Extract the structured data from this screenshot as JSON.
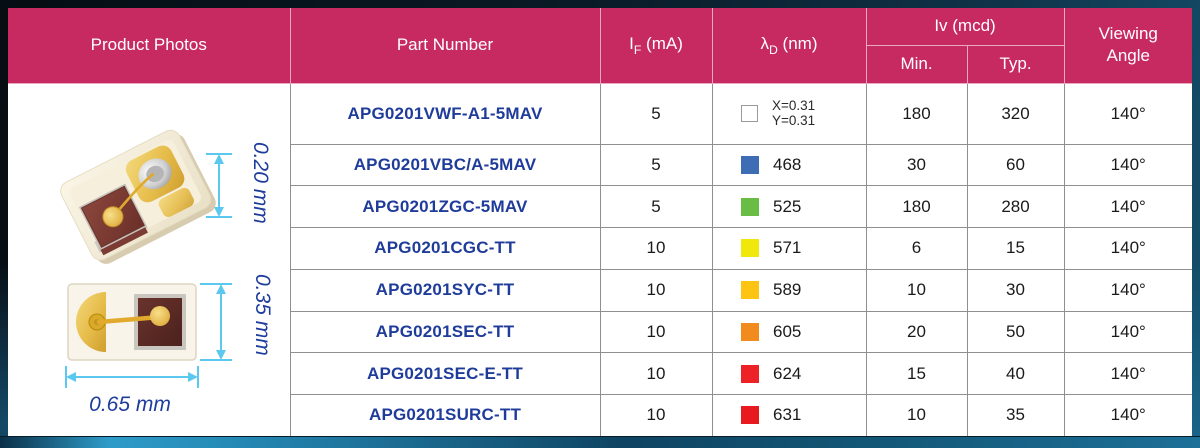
{
  "colors": {
    "header_bg": "#c72a60",
    "part_number_text": "#1f3c9b",
    "dimension_text": "#1e3d9c",
    "dimension_arrow": "#5bc8f0",
    "body_border": "#8f8f8f"
  },
  "header": {
    "product_photos": "Product Photos",
    "part_number": "Part Number",
    "if_i": "I",
    "if_sub": "F",
    "if_unit": " (mA)",
    "lambda": "λ",
    "lambda_sub": "D",
    "lambda_unit": " (nm)",
    "iv": "Iv (mcd)",
    "min": "Min.",
    "typ": "Typ.",
    "viewing1": "Viewing",
    "viewing2": "Angle"
  },
  "photos": {
    "dim_height_side": "0.20 mm",
    "dim_height_top": "0.35 mm",
    "dim_width_top": "0.65 mm"
  },
  "rows": [
    {
      "part": "APG0201VWF-A1-5MAV",
      "if": "5",
      "swatch": "#ffffff",
      "white": true,
      "x": "X=0.31",
      "y": "Y=0.31",
      "min": "180",
      "typ": "320",
      "angle": "140°"
    },
    {
      "part": "APG0201VBC/A-5MAV",
      "if": "5",
      "swatch": "#3e6db5",
      "nm": "468",
      "min": "30",
      "typ": "60",
      "angle": "140°"
    },
    {
      "part": "APG0201ZGC-5MAV",
      "if": "5",
      "swatch": "#69bd45",
      "nm": "525",
      "min": "180",
      "typ": "280",
      "angle": "140°"
    },
    {
      "part": "APG0201CGC-TT",
      "if": "10",
      "swatch": "#f0e80b",
      "nm": "571",
      "min": "6",
      "typ": "15",
      "angle": "140°"
    },
    {
      "part": "APG0201SYC-TT",
      "if": "10",
      "swatch": "#fdc413",
      "nm": "589",
      "min": "10",
      "typ": "30",
      "angle": "140°"
    },
    {
      "part": "APG0201SEC-TT",
      "if": "10",
      "swatch": "#f28b1d",
      "nm": "605",
      "min": "20",
      "typ": "50",
      "angle": "140°"
    },
    {
      "part": "APG0201SEC-E-TT",
      "if": "10",
      "swatch": "#ec2227",
      "nm": "624",
      "min": "15",
      "typ": "40",
      "angle": "140°"
    },
    {
      "part": "APG0201SURC-TT",
      "if": "10",
      "swatch": "#e8191f",
      "nm": "631",
      "min": "10",
      "typ": "35",
      "angle": "140°"
    }
  ]
}
